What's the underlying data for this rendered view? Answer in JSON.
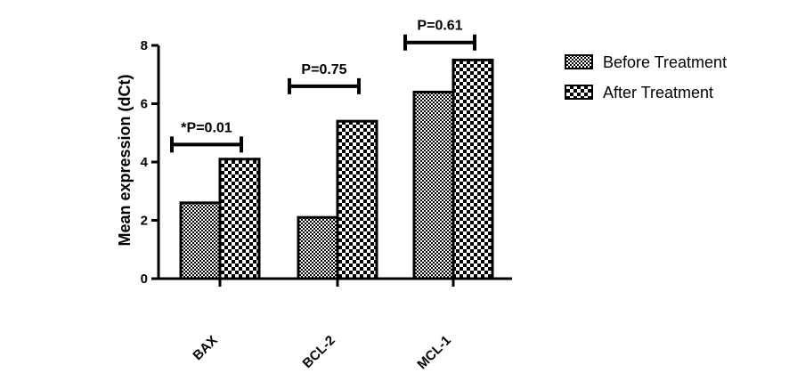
{
  "chart_data": {
    "type": "bar",
    "categories": [
      "BAX",
      "BCL-2",
      "MCL-1"
    ],
    "series": [
      {
        "name": "Before Treatment",
        "values": [
          2.6,
          2.1,
          6.4
        ],
        "pattern": "fine-checker"
      },
      {
        "name": "After Treatment",
        "values": [
          4.1,
          5.4,
          7.5
        ],
        "pattern": "coarse-checker"
      }
    ],
    "ylabel": "Mean expression (dCt)",
    "ylim": [
      0,
      8
    ],
    "yticks": [
      0,
      2,
      4,
      6,
      8
    ],
    "grid": false,
    "legend_position": "right",
    "annotations": [
      {
        "category": "BAX",
        "text": "*P=0.01",
        "level": 4.6
      },
      {
        "category": "BCL-2",
        "text": "P=0.75",
        "level": 6.6
      },
      {
        "category": "MCL-1",
        "text": "P=0.61",
        "level": 8.1
      }
    ]
  }
}
